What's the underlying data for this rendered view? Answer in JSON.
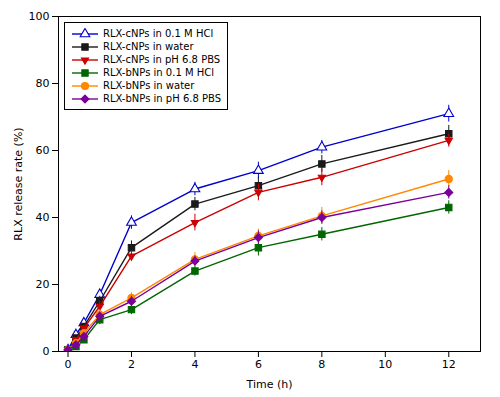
{
  "chart_data": {
    "type": "line",
    "xlabel": "Time (h)",
    "ylabel": "RLX release rate (%)",
    "x": [
      0,
      0.25,
      0.5,
      1,
      2,
      4,
      6,
      8,
      12
    ],
    "xlim": [
      -0.3,
      13.0
    ],
    "ylim": [
      0,
      100
    ],
    "xticks": [
      0,
      2,
      4,
      6,
      8,
      10,
      12
    ],
    "yticks": [
      0,
      20,
      40,
      60,
      80,
      100
    ],
    "grid": false,
    "legend": "upper left",
    "series": [
      {
        "name": "RLX-cNPs in 0.1 M HCl",
        "color": "#0000CC",
        "marker": "open-triangle-up",
        "line_style": "solid",
        "values": [
          0.5,
          5.0,
          8.5,
          17.0,
          38.5,
          48.5,
          54.0,
          61.0,
          71.0
        ],
        "errors": [
          0.3,
          0.5,
          0.8,
          1.5,
          2.0,
          2.0,
          2.5,
          2.0,
          2.5
        ]
      },
      {
        "name": "RLX-cNPs in water",
        "color": "#1a1a1a",
        "marker": "square",
        "line_style": "solid",
        "values": [
          0.5,
          4.0,
          7.5,
          15.0,
          31.0,
          44.0,
          49.5,
          56.0,
          65.0
        ],
        "errors": [
          0.3,
          0.5,
          0.8,
          1.5,
          2.0,
          2.0,
          2.5,
          2.5,
          2.5
        ]
      },
      {
        "name": "RLX-cNPs in pH 6.8 PBS",
        "color": "#CC0000",
        "marker": "triangle-down",
        "line_style": "solid",
        "values": [
          0.5,
          3.5,
          7.0,
          13.5,
          28.5,
          38.5,
          47.5,
          52.0,
          63.0
        ],
        "errors": [
          0.3,
          0.5,
          0.8,
          1.5,
          1.5,
          2.5,
          2.5,
          2.5,
          2.0
        ]
      },
      {
        "name": "RLX-bNPs in 0.1 M HCl",
        "color": "#006600",
        "marker": "square",
        "line_style": "solid",
        "values": [
          0.5,
          1.5,
          3.5,
          9.5,
          12.5,
          24.0,
          31.0,
          35.0,
          43.0
        ],
        "errors": [
          0.2,
          0.4,
          0.5,
          1.5,
          1.5,
          1.5,
          2.5,
          2.0,
          2.0
        ]
      },
      {
        "name": "RLX-bNPs in water",
        "color": "#FF8800",
        "marker": "circle",
        "line_style": "solid",
        "values": [
          0.5,
          2.5,
          5.5,
          11.0,
          16.0,
          27.5,
          34.5,
          40.5,
          51.5
        ],
        "errors": [
          0.3,
          0.5,
          0.8,
          1.5,
          1.5,
          2.0,
          2.0,
          2.5,
          2.5
        ]
      },
      {
        "name": "RLX-bNPs in pH 6.8 PBS",
        "color": "#7B0099",
        "marker": "diamond",
        "line_style": "solid",
        "values": [
          0.5,
          2.0,
          4.5,
          10.5,
          15.0,
          27.0,
          34.0,
          40.0,
          47.5
        ],
        "errors": [
          0.2,
          0.4,
          0.6,
          1.2,
          1.5,
          1.5,
          2.0,
          2.0,
          2.0
        ]
      }
    ]
  }
}
